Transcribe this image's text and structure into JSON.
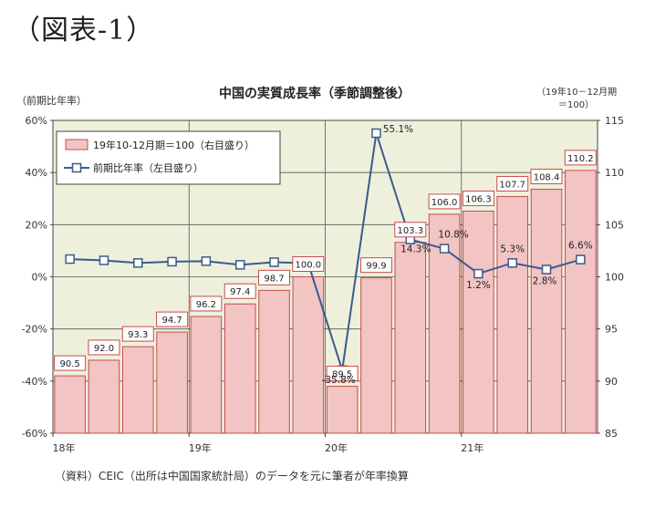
{
  "figure_label": "（図表-1）",
  "source_note": "（資料）CEIC（出所は中国国家統計局）のデータを元に筆者が年率換算",
  "colors": {
    "plot_bg": "#eef0dc",
    "bar_fill": "#f2c4c4",
    "bar_stroke": "#c84c4c",
    "line": "#3a5a8c",
    "marker_fill": "#ffffff",
    "grid": "#555555"
  },
  "chart_data": {
    "type": "bar",
    "title": "中国の実質成長率（季節調整後）",
    "left_axis_label": "（前期比年率）",
    "right_axis_label_line1": "（19年10－12月期",
    "right_axis_label_line2": "＝100）",
    "left_ylim": [
      -60,
      60
    ],
    "left_ticks": [
      "60%",
      "40%",
      "20%",
      "0%",
      "-20%",
      "-40%",
      "-60%"
    ],
    "right_ylim": [
      85,
      115
    ],
    "right_ticks": [
      "115",
      "110",
      "105",
      "100",
      "95",
      "90",
      "85"
    ],
    "x_tick_labels": [
      "18年",
      "19年",
      "20年",
      "21年"
    ],
    "categories": [
      "18Q1",
      "18Q2",
      "18Q3",
      "18Q4",
      "19Q1",
      "19Q2",
      "19Q3",
      "19Q4",
      "20Q1",
      "20Q2",
      "20Q3",
      "20Q4",
      "21Q1",
      "21Q2",
      "21Q3",
      "21Q4"
    ],
    "legend": {
      "bar": "19年10-12月期＝100（右目盛り）",
      "line": "前期比年率（左目盛り）",
      "placement": "top-left"
    },
    "series": [
      {
        "name": "19年10-12月期＝100（右目盛り）",
        "axis": "right",
        "type": "bar",
        "values": [
          90.5,
          92.0,
          93.3,
          94.7,
          96.2,
          97.4,
          98.7,
          100.0,
          89.5,
          99.9,
          103.3,
          106.0,
          106.3,
          107.7,
          108.4,
          110.2
        ],
        "labels": [
          "90.5",
          "92.0",
          "93.3",
          "94.7",
          "96.2",
          "97.4",
          "98.7",
          "100.0",
          "89.5",
          "99.9",
          "103.3",
          "106.0",
          "106.3",
          "107.7",
          "108.4",
          "110.2"
        ]
      },
      {
        "name": "前期比年率（左目盛り）",
        "axis": "left",
        "type": "line",
        "values": [
          6.8,
          6.3,
          5.3,
          5.8,
          6.0,
          4.6,
          5.6,
          5.2,
          -35.8,
          55.1,
          14.3,
          10.8,
          1.2,
          5.3,
          2.8,
          6.6
        ],
        "labels": [
          "",
          "",
          "",
          "",
          "",
          "",
          "",
          "",
          "-35.8%",
          "55.1%",
          "14.3%",
          "10.8%",
          "1.2%",
          "5.3%",
          "2.8%",
          "6.6%"
        ]
      }
    ]
  }
}
